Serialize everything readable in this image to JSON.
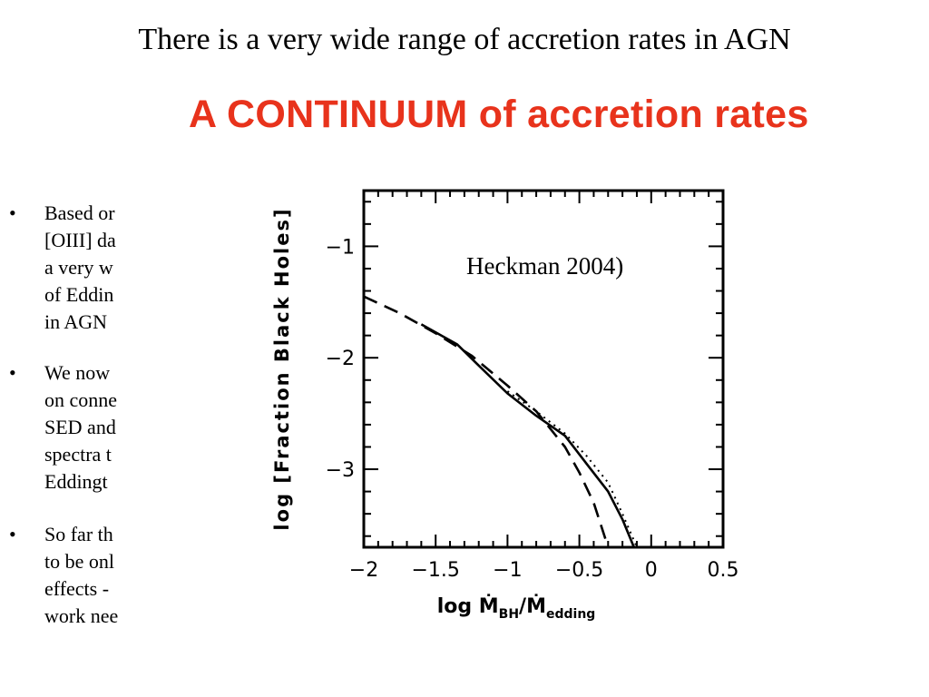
{
  "slide": {
    "title": "There is a very wide range of accretion rates in AGN",
    "banner": "A CONTINUUM of accretion rates",
    "banner_color": "#e8331c"
  },
  "bullets": [
    {
      "lines": [
        "Based or",
        "[OIII] da",
        "a very w",
        "of Eddin",
        "in AGN"
      ]
    },
    {
      "lines": [
        "We now",
        "on conne",
        "SED and",
        "spectra t",
        "Eddingt"
      ]
    },
    {
      "lines": [
        " So far th",
        "to be onl",
        "effects -",
        "work nee"
      ]
    }
  ],
  "chart_data": {
    "type": "line",
    "xlabel": "log Ṁ",
    "xlabel_sub1": "BH",
    "xlabel_mid": "/Ṁ",
    "xlabel_sub2": "edding",
    "ylabel": "log [Fraction Black Holes]",
    "xlim": [
      -2.0,
      0.5
    ],
    "ylim": [
      -3.7,
      -0.5
    ],
    "x_ticks": [
      -2,
      -1.5,
      -1,
      -0.5,
      0,
      0.5
    ],
    "x_tick_labels": [
      "−2",
      "−1.5",
      "−1",
      "−0.5",
      "0",
      "0.5"
    ],
    "y_ticks": [
      -1,
      -2,
      -3
    ],
    "y_tick_labels": [
      "−1",
      "−2",
      "−3"
    ],
    "annotation": "Heckman 2004)",
    "series": [
      {
        "style": "solid",
        "x": [
          -1.6,
          -1.35,
          -1.2,
          -1.0,
          -0.8,
          -0.6,
          -0.45,
          -0.3,
          -0.2,
          -0.12
        ],
        "y": [
          -1.7,
          -1.88,
          -2.07,
          -2.32,
          -2.52,
          -2.7,
          -2.95,
          -3.2,
          -3.45,
          -3.7
        ]
      },
      {
        "style": "dashed",
        "x": [
          -2.0,
          -1.75,
          -1.5,
          -1.25,
          -1.0,
          -0.8,
          -0.6,
          -0.5,
          -0.4,
          -0.3
        ],
        "y": [
          -1.45,
          -1.6,
          -1.78,
          -1.98,
          -2.25,
          -2.48,
          -2.8,
          -3.03,
          -3.3,
          -3.7
        ]
      },
      {
        "style": "dotted",
        "x": [
          -1.0,
          -0.8,
          -0.6,
          -0.45,
          -0.3,
          -0.2,
          -0.1
        ],
        "y": [
          -2.3,
          -2.48,
          -2.68,
          -2.88,
          -3.12,
          -3.4,
          -3.7
        ]
      }
    ]
  }
}
